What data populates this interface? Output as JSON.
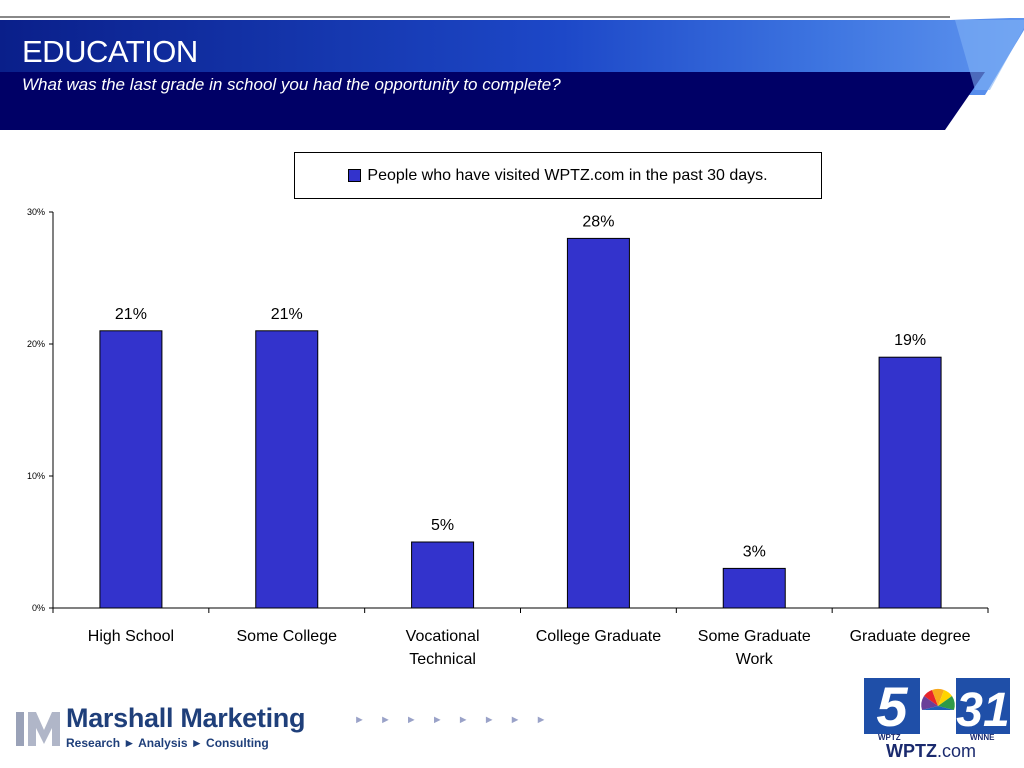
{
  "slide": {
    "title": "EDUCATION",
    "subtitle": "What was the last grade in school you had the opportunity to complete?"
  },
  "chart_data": {
    "type": "bar",
    "categories": [
      "High School",
      "Some College",
      "Vocational Technical",
      "College Graduate",
      "Some Graduate Work",
      "Graduate degree"
    ],
    "series": [
      {
        "name": "People who have visited WPTZ.com in the past 30 days.",
        "values": [
          21,
          21,
          5,
          28,
          3,
          19
        ],
        "color": "#3333cc"
      }
    ],
    "value_labels": [
      "21%",
      "21%",
      "5%",
      "28%",
      "3%",
      "19%"
    ],
    "y_ticks": [
      "0%",
      "10%",
      "20%",
      "30%"
    ],
    "ylim": [
      0,
      30
    ],
    "legend_position": "top-center",
    "grid": false
  },
  "footer": {
    "company": "Marshall Marketing",
    "tagline": "Research ► Analysis ► Consulting",
    "arrows": "► ► ► ► ► ► ► ►",
    "station_url_main": "WPTZ",
    "station_url_suffix": ".com",
    "call_sign_left": "WPTZ",
    "call_sign_right": "WNNE",
    "channel_numbers": "5 31"
  },
  "colors": {
    "header_dark": "#000066",
    "header_blue": "#1a3fb0",
    "bar": "#3333cc",
    "brand_navy": "#1f3f7a"
  }
}
